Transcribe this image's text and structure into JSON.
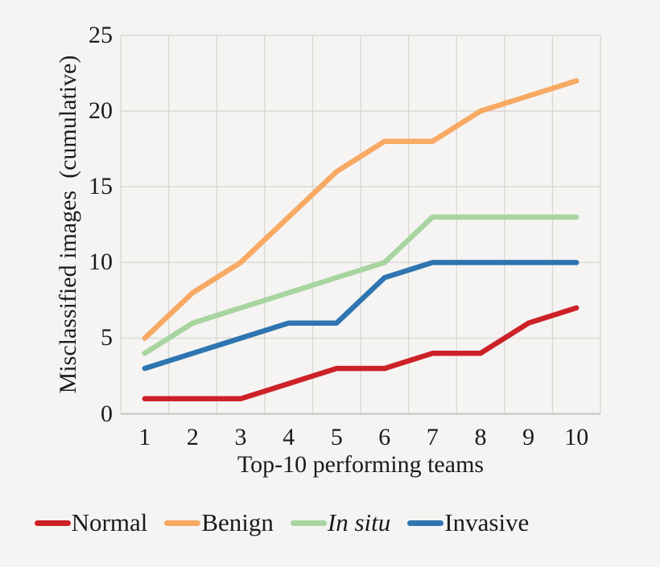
{
  "figure": {
    "background": "#f5f4f2",
    "grid_color": "#dad7d3",
    "axis_color": "#c4c1be",
    "text_color": "#1b1b1b"
  },
  "chart_data": {
    "type": "line",
    "title": "",
    "xlabel": "Top-10 performing teams",
    "ylabel": "Misclassified images  (cumulative)",
    "categories": [
      "1",
      "2",
      "3",
      "4",
      "5",
      "6",
      "7",
      "8",
      "9",
      "10"
    ],
    "series": [
      {
        "name": "Normal",
        "color": "#cd2128",
        "italic": false,
        "values": [
          1,
          1,
          1,
          2,
          3,
          3,
          4,
          4,
          6,
          7
        ]
      },
      {
        "name": "Benign",
        "color": "#f8a963",
        "italic": false,
        "values": [
          5,
          8,
          10,
          13,
          16,
          18,
          18,
          20,
          21,
          22
        ]
      },
      {
        "name": "In situ",
        "color": "#a8d4a0",
        "italic": true,
        "values": [
          4,
          6,
          7,
          8,
          9,
          10,
          13,
          13,
          13,
          13
        ]
      },
      {
        "name": "Invasive",
        "color": "#2e75b1",
        "italic": false,
        "values": [
          3,
          4,
          5,
          6,
          6,
          9,
          10,
          10,
          10,
          10
        ]
      }
    ],
    "ylim": [
      0,
      25
    ],
    "yticks": [
      0,
      5,
      10,
      15,
      20,
      25
    ],
    "grid": true,
    "legend_position": "bottom"
  }
}
